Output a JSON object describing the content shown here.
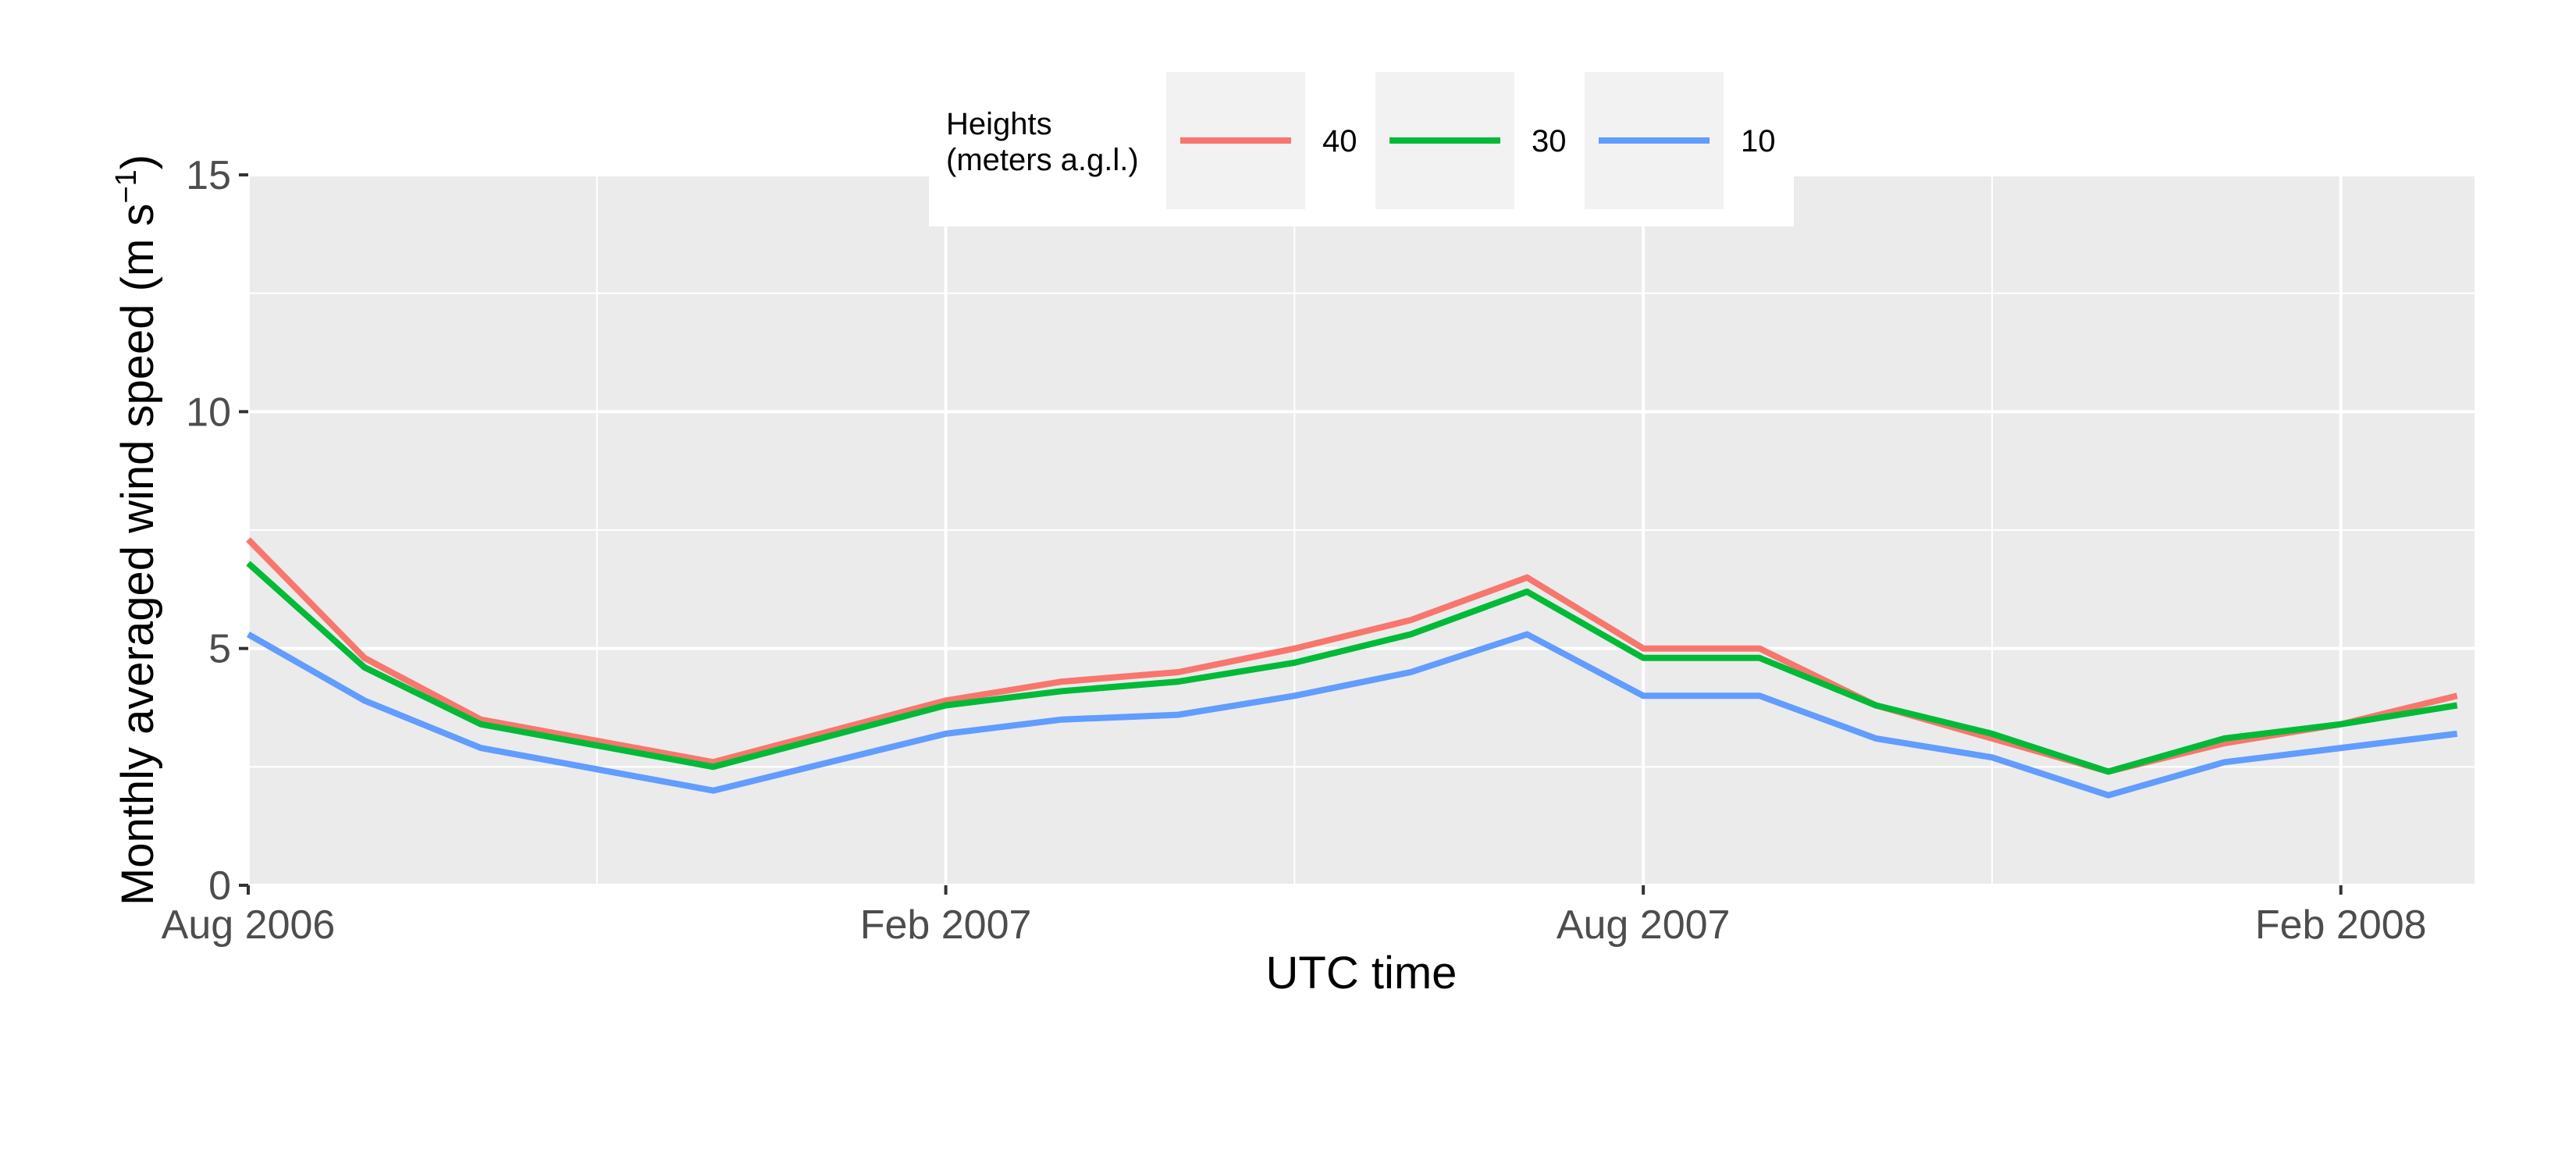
{
  "chart_data": {
    "type": "line",
    "xlabel": "UTC time",
    "ylabel": "Monthly averaged wind speed (m s",
    "ylabel_sup": "−1",
    "ylabel_close": ")",
    "ylim": [
      0,
      15
    ],
    "y_ticks": [
      0,
      5,
      10,
      15
    ],
    "y_tick_labels": [
      "0",
      "5",
      "10",
      "15"
    ],
    "x_range": [
      "2006-08",
      "2008-03"
    ],
    "x_ticks": [
      "2006-08",
      "2007-02",
      "2007-08",
      "2008-02"
    ],
    "x_tick_labels": [
      "Aug 2006",
      "Feb 2007",
      "Aug 2007",
      "Feb 2008"
    ],
    "x": [
      "2006-08",
      "2006-09",
      "2006-10",
      "2006-12",
      "2007-02",
      "2007-03",
      "2007-04",
      "2007-05",
      "2007-06",
      "2007-07",
      "2007-08",
      "2007-09",
      "2007-10",
      "2007-11",
      "2007-12",
      "2008-01",
      "2008-02",
      "2008-03"
    ],
    "series": [
      {
        "name": "40",
        "color": "#f8766d",
        "values": [
          7.3,
          4.8,
          3.5,
          2.6,
          3.9,
          4.3,
          4.5,
          5.0,
          5.6,
          6.5,
          5.0,
          5.0,
          3.8,
          3.1,
          2.4,
          3.0,
          3.4,
          4.0
        ]
      },
      {
        "name": "30",
        "color": "#00ba38",
        "values": [
          6.8,
          4.6,
          3.4,
          2.5,
          3.8,
          4.1,
          4.3,
          4.7,
          5.3,
          6.2,
          4.8,
          4.8,
          3.8,
          3.2,
          2.4,
          3.1,
          3.4,
          3.8
        ]
      },
      {
        "name": "10",
        "color": "#619cff",
        "values": [
          5.3,
          3.9,
          2.9,
          2.0,
          3.2,
          3.5,
          3.6,
          4.0,
          4.5,
          5.3,
          4.0,
          4.0,
          3.1,
          2.7,
          1.9,
          2.6,
          2.9,
          3.2
        ]
      }
    ],
    "legend": {
      "title_line1": "Heights",
      "title_line2": "(meters a.g.l.)",
      "position": "top"
    },
    "grid": true,
    "panel_background": "#ebebeb",
    "grid_color": "#ffffff"
  }
}
